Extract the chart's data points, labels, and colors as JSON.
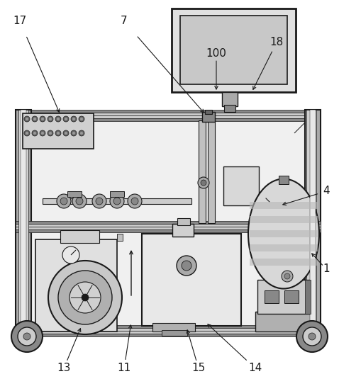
{
  "background_color": "#ffffff",
  "line_color": "#1a1a1a",
  "frame_fill": "#f5f5f5",
  "shelf_fill": "#888888",
  "light_gray": "#d8d8d8",
  "mid_gray": "#aaaaaa",
  "dark_gray": "#555555"
}
